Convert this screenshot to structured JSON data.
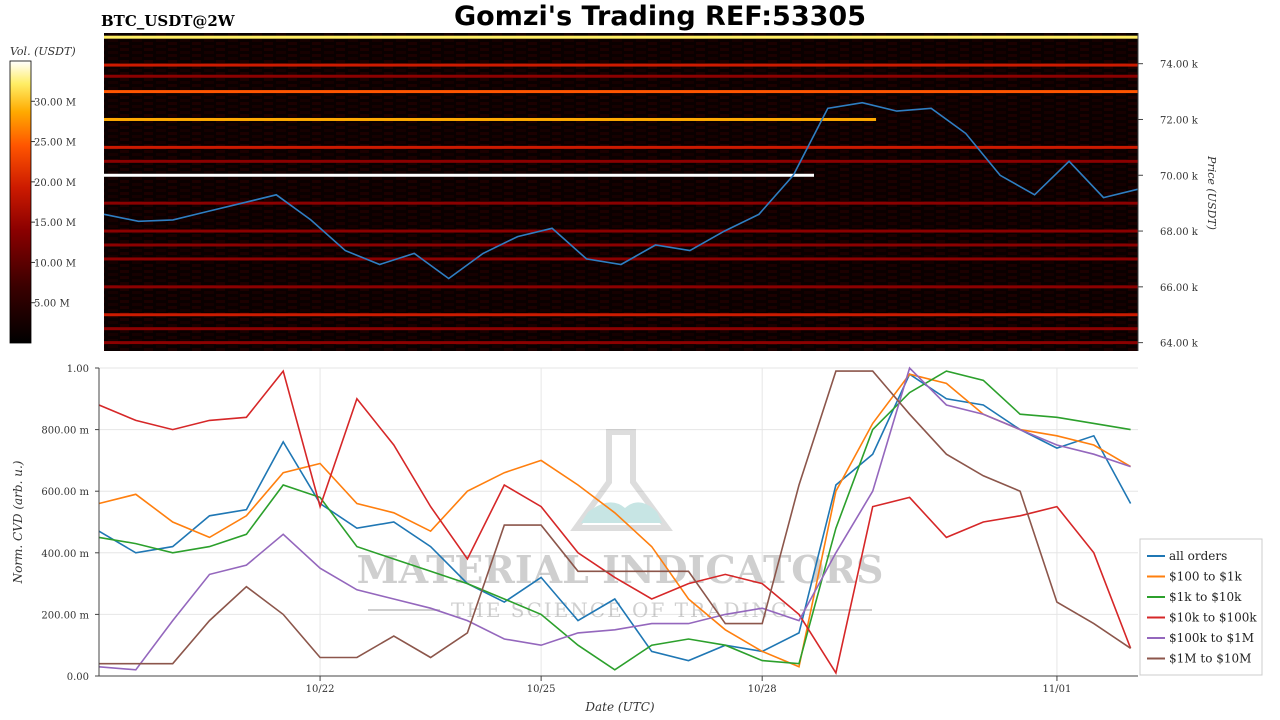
{
  "header": {
    "symbol": "BTC_USDT@2W",
    "title": "Gomzi's Trading REF:53305"
  },
  "colors": {
    "heatmap_scale": [
      "#000000",
      "#3a0000",
      "#8b0000",
      "#cc1a00",
      "#ff5500",
      "#ffaa00",
      "#ffee66",
      "#ffffff"
    ],
    "price_line": "#2f7ec2",
    "grid": "#e6e6e6"
  },
  "chart_data": [
    {
      "type": "heatmap",
      "title": "",
      "colorbar_label": "Vol. (USDT)",
      "colorbar_ticks": [
        "5.00 M",
        "10.00 M",
        "15.00 M",
        "20.00 M",
        "25.00 M",
        "30.00 M"
      ],
      "colorbar_tick_values": [
        5,
        10,
        15,
        20,
        25,
        30
      ],
      "colorbar_range": [
        0,
        35
      ],
      "ylabel": "Price (USDT)",
      "y_ticks": [
        "64.00 k",
        "66.00 k",
        "68.00 k",
        "70.00 k",
        "72.00 k",
        "74.00 k"
      ],
      "y_tick_values": [
        64000,
        66000,
        68000,
        70000,
        72000,
        74000
      ],
      "ylim": [
        63700,
        75100
      ],
      "xlim_days": [
        0,
        15
      ],
      "walls": [
        {
          "price": 74950,
          "start_day": 0.0,
          "end_day": 15.0,
          "volume": 30
        },
        {
          "price": 73950,
          "start_day": 0.0,
          "end_day": 15.0,
          "volume": 13
        },
        {
          "price": 73550,
          "start_day": 0.0,
          "end_day": 15.0,
          "volume": 11
        },
        {
          "price": 73000,
          "start_day": 0.0,
          "end_day": 15.0,
          "volume": 22
        },
        {
          "price": 72000,
          "start_day": 0.0,
          "end_day": 11.2,
          "volume": 23
        },
        {
          "price": 71000,
          "start_day": 0.0,
          "end_day": 15.0,
          "volume": 14
        },
        {
          "price": 70500,
          "start_day": 0.0,
          "end_day": 15.0,
          "volume": 12
        },
        {
          "price": 70000,
          "start_day": 0.0,
          "end_day": 10.3,
          "volume": 33
        },
        {
          "price": 69000,
          "start_day": 0.0,
          "end_day": 15.0,
          "volume": 10
        },
        {
          "price": 68000,
          "start_day": 0.0,
          "end_day": 15.0,
          "volume": 9
        },
        {
          "price": 67500,
          "start_day": 0.0,
          "end_day": 15.0,
          "volume": 9
        },
        {
          "price": 67000,
          "start_day": 0.0,
          "end_day": 15.0,
          "volume": 10
        },
        {
          "price": 66000,
          "start_day": 0.0,
          "end_day": 15.0,
          "volume": 11
        },
        {
          "price": 65000,
          "start_day": 0.0,
          "end_day": 15.0,
          "volume": 13
        },
        {
          "price": 64500,
          "start_day": 0.0,
          "end_day": 15.0,
          "volume": 8
        },
        {
          "price": 64000,
          "start_day": 0.0,
          "end_day": 15.0,
          "volume": 9
        }
      ],
      "price_series": {
        "name": "",
        "x_days": [
          0,
          0.5,
          1.0,
          1.5,
          2.0,
          2.5,
          3.0,
          3.5,
          4.0,
          4.5,
          5.0,
          5.5,
          6.0,
          6.5,
          7.0,
          7.5,
          8.0,
          8.5,
          9.0,
          9.5,
          10.0,
          10.5,
          11.0,
          11.5,
          12.0,
          12.5,
          13.0,
          13.5,
          14.0,
          14.5,
          15.0
        ],
        "price": [
          68600,
          68350,
          68400,
          68700,
          69000,
          69300,
          68400,
          67300,
          66800,
          67200,
          66300,
          67200,
          67800,
          68100,
          67000,
          66800,
          67500,
          67300,
          68000,
          68600,
          70000,
          72400,
          72600,
          72300,
          72400,
          71500,
          70000,
          69300,
          70500,
          69200,
          69500
        ]
      }
    },
    {
      "type": "line",
      "title": "",
      "xlabel": "Date (UTC)",
      "ylabel": "Norm. CVD (arb. u.)",
      "x_ticks": [
        "10/22",
        "10/25",
        "10/28",
        "11/01"
      ],
      "x_tick_days": [
        3,
        6,
        9,
        13
      ],
      "xlim_days": [
        0,
        14.1
      ],
      "y_ticks": [
        "0.00",
        "200.00 m",
        "400.00 m",
        "600.00 m",
        "800.00 m",
        "1.00"
      ],
      "y_tick_values": [
        0,
        0.2,
        0.4,
        0.6,
        0.8,
        1.0
      ],
      "ylim": [
        0,
        1
      ],
      "grid": true,
      "legend_position": "bottom-right",
      "x_days": [
        0,
        0.5,
        1.0,
        1.5,
        2.0,
        2.5,
        3.0,
        3.5,
        4.0,
        4.5,
        5.0,
        5.5,
        6.0,
        6.5,
        7.0,
        7.5,
        8.0,
        8.5,
        9.0,
        9.5,
        10.0,
        10.5,
        11.0,
        11.5,
        12.0,
        12.5,
        13.0,
        13.5,
        14.0
      ],
      "series": [
        {
          "name": "all orders",
          "color": "#1f77b4",
          "values": [
            0.47,
            0.4,
            0.42,
            0.52,
            0.54,
            0.76,
            0.56,
            0.48,
            0.5,
            0.42,
            0.3,
            0.24,
            0.32,
            0.18,
            0.25,
            0.08,
            0.05,
            0.1,
            0.08,
            0.14,
            0.62,
            0.72,
            0.98,
            0.9,
            0.88,
            0.8,
            0.74,
            0.78,
            0.56
          ]
        },
        {
          "name": "$100 to $1k",
          "color": "#ff7f0e",
          "values": [
            0.56,
            0.59,
            0.5,
            0.45,
            0.52,
            0.66,
            0.69,
            0.56,
            0.53,
            0.47,
            0.6,
            0.66,
            0.7,
            0.62,
            0.53,
            0.42,
            0.25,
            0.15,
            0.08,
            0.03,
            0.6,
            0.82,
            0.98,
            0.95,
            0.85,
            0.8,
            0.78,
            0.75,
            0.68
          ]
        },
        {
          "name": "$1k to $10k",
          "color": "#2ca02c",
          "values": [
            0.45,
            0.43,
            0.4,
            0.42,
            0.46,
            0.62,
            0.58,
            0.42,
            0.38,
            0.34,
            0.3,
            0.25,
            0.2,
            0.1,
            0.02,
            0.1,
            0.12,
            0.1,
            0.05,
            0.04,
            0.48,
            0.8,
            0.92,
            0.99,
            0.96,
            0.85,
            0.84,
            0.82,
            0.8
          ]
        },
        {
          "name": "$10k to $100k",
          "color": "#d62728",
          "values": [
            0.88,
            0.83,
            0.8,
            0.83,
            0.84,
            0.99,
            0.55,
            0.9,
            0.75,
            0.55,
            0.38,
            0.62,
            0.55,
            0.4,
            0.32,
            0.25,
            0.3,
            0.33,
            0.3,
            0.2,
            0.01,
            0.55,
            0.58,
            0.45,
            0.5,
            0.52,
            0.55,
            0.4,
            0.09
          ]
        },
        {
          "name": "$100k to $1M",
          "color": "#9467bd",
          "values": [
            0.03,
            0.02,
            0.18,
            0.33,
            0.36,
            0.46,
            0.35,
            0.28,
            0.25,
            0.22,
            0.18,
            0.12,
            0.1,
            0.14,
            0.15,
            0.17,
            0.17,
            0.2,
            0.22,
            0.18,
            0.4,
            0.6,
            1.0,
            0.88,
            0.85,
            0.8,
            0.75,
            0.72,
            0.68
          ]
        },
        {
          "name": "$1M to $10M",
          "color": "#8c564b",
          "values": [
            0.04,
            0.04,
            0.04,
            0.18,
            0.29,
            0.2,
            0.06,
            0.06,
            0.13,
            0.06,
            0.14,
            0.49,
            0.49,
            0.34,
            0.34,
            0.34,
            0.34,
            0.17,
            0.17,
            0.62,
            0.99,
            0.99,
            0.85,
            0.72,
            0.65,
            0.6,
            0.24,
            0.17,
            0.09
          ]
        }
      ]
    }
  ],
  "watermark": {
    "line1": "MATERIAL INDICATORS",
    "line2": "THE SCIENCE OF TRADING"
  }
}
